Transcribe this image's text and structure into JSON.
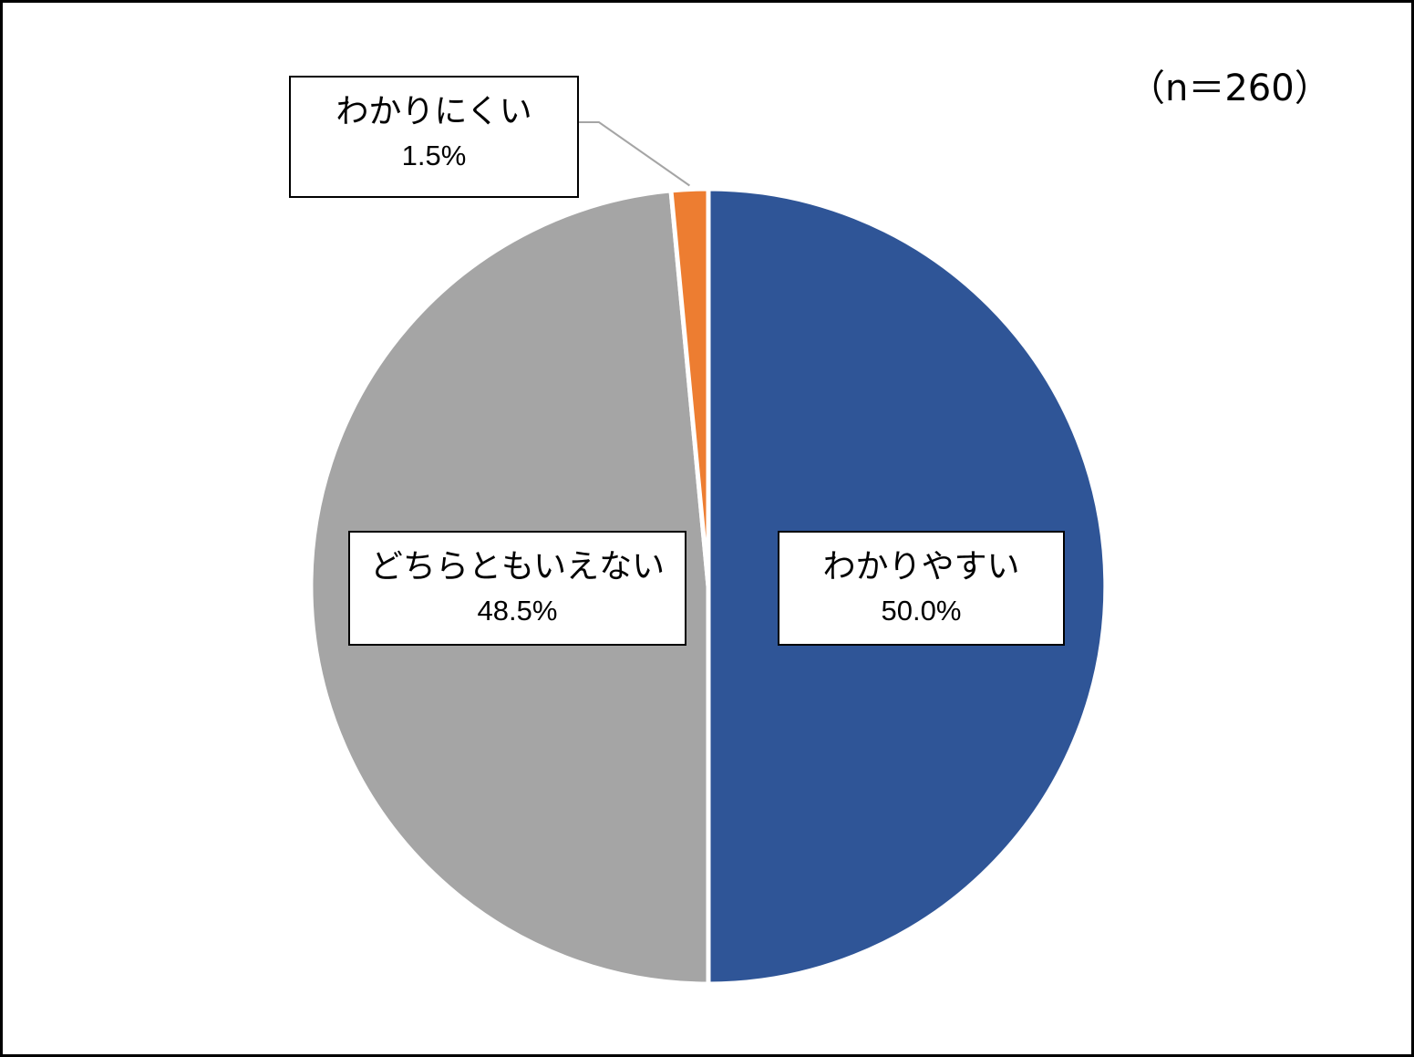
{
  "chart_data": {
    "type": "pie",
    "note": "（n＝260）",
    "slices": [
      {
        "label": "わかりやすい",
        "value": 50.0,
        "display": "50.0%",
        "color": "#2F5597"
      },
      {
        "label": "どちらともいえない",
        "value": 48.5,
        "display": "48.5%",
        "color": "#A5A5A5"
      },
      {
        "label": "わかりにくい",
        "value": 1.5,
        "display": "1.5%",
        "color": "#ED7D31"
      }
    ],
    "start_angle": "12 o'clock",
    "direction": "clockwise",
    "leader_line_color": "#A5A5A5"
  }
}
